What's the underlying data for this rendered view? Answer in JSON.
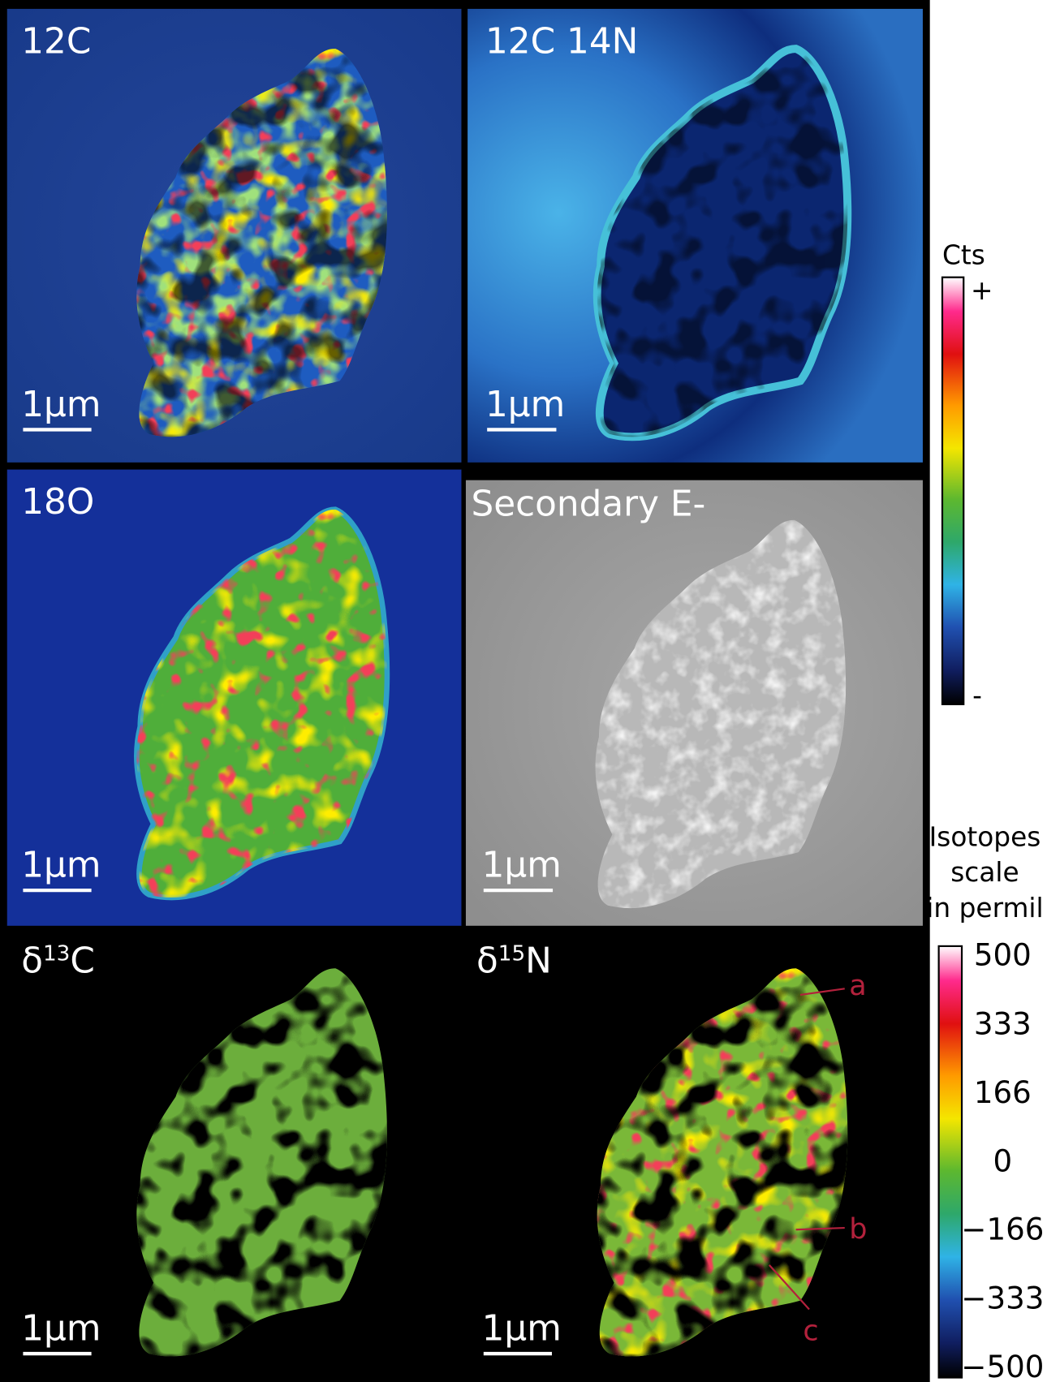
{
  "panels": [
    {
      "label": "12C",
      "scale_bar": "1µm"
    },
    {
      "label": "12C 14N",
      "scale_bar": "1µm"
    },
    {
      "label": "18O",
      "scale_bar": "1µm"
    },
    {
      "label": "Secondary E-",
      "scale_bar": "1µm"
    },
    {
      "label": {
        "symbol": "δ",
        "sup": "13",
        "element": "C"
      },
      "scale_bar": "1µm"
    },
    {
      "label": {
        "symbol": "δ",
        "sup": "15",
        "element": "N"
      },
      "scale_bar": "1µm",
      "annotations": [
        "a",
        "b",
        "c"
      ]
    }
  ],
  "counts_scale": {
    "title": "Cts",
    "max_label": "+",
    "min_label": "-"
  },
  "isotope_scale": {
    "title": [
      "Isotopes",
      "scale",
      "in permil"
    ],
    "range": [
      -500,
      500
    ],
    "ticks": [
      500,
      333,
      166,
      0,
      {
        "value": -166,
        "label": "−166"
      },
      {
        "value": -333,
        "label": "−333"
      },
      {
        "value": -500,
        "label": "−500"
      }
    ]
  }
}
